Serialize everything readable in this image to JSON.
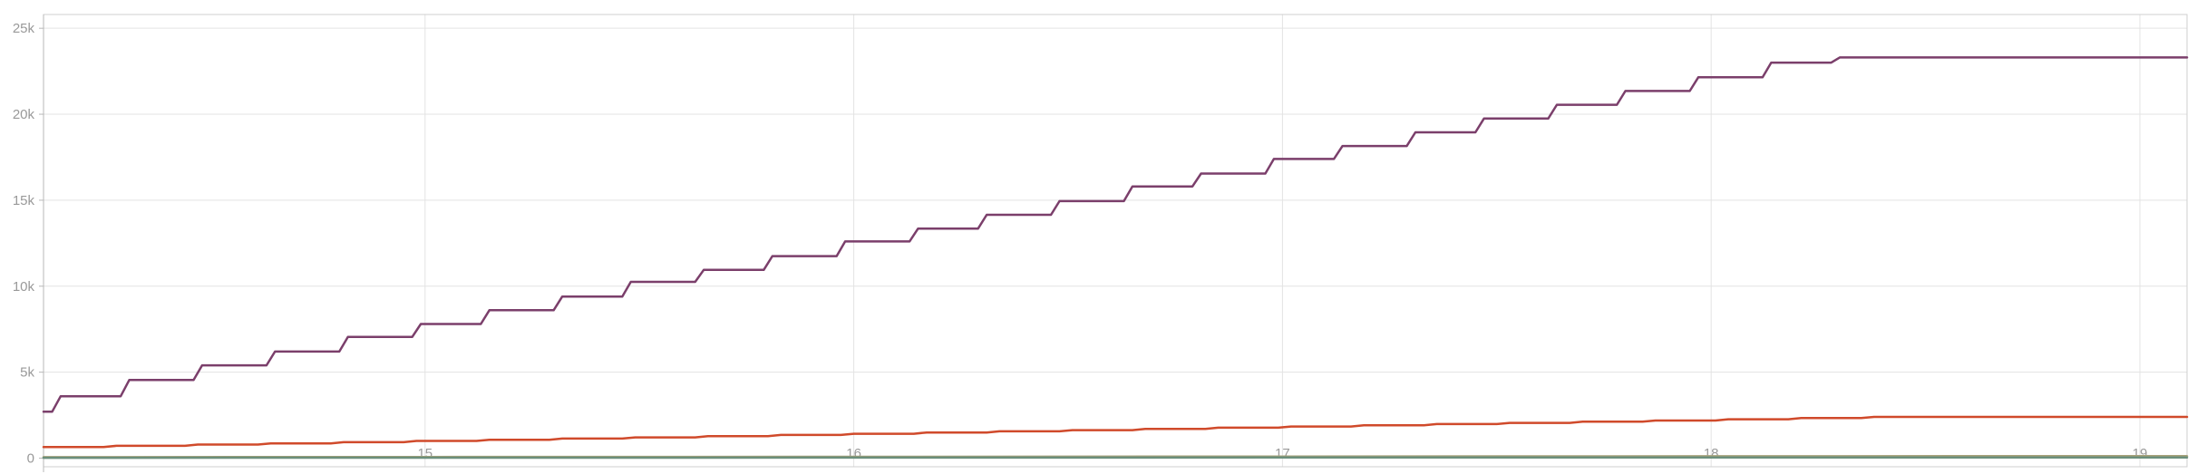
{
  "chart_data": {
    "type": "line",
    "title": "",
    "xlabel": "",
    "ylabel": "",
    "xlim": [
      14.11,
      19.11
    ],
    "ylim": [
      -500,
      25800
    ],
    "x_ticks": [
      {
        "value": 15,
        "label": "15"
      },
      {
        "value": 16,
        "label": "16"
      },
      {
        "value": 17,
        "label": "17"
      },
      {
        "value": 18,
        "label": "18"
      },
      {
        "value": 19,
        "label": "19"
      }
    ],
    "y_ticks": [
      {
        "value": 0,
        "label": "0"
      },
      {
        "value": 5000,
        "label": "5k"
      },
      {
        "value": 10000,
        "label": "10k"
      },
      {
        "value": 15000,
        "label": "15k"
      },
      {
        "value": 20000,
        "label": "20k"
      },
      {
        "value": 25000,
        "label": "25k"
      }
    ],
    "grid": true,
    "legend": "none",
    "series": [
      {
        "color": "#7b3f6b",
        "x": [
          14.11,
          14.13,
          14.15,
          14.29,
          14.31,
          14.46,
          14.48,
          14.63,
          14.65,
          14.8,
          14.82,
          14.97,
          14.99,
          15.13,
          15.15,
          15.3,
          15.32,
          15.46,
          15.48,
          15.63,
          15.65,
          15.79,
          15.81,
          15.96,
          15.98,
          16.13,
          16.15,
          16.29,
          16.31,
          16.46,
          16.48,
          16.63,
          16.65,
          16.79,
          16.81,
          16.96,
          16.98,
          17.12,
          17.14,
          17.29,
          17.31,
          17.45,
          17.47,
          17.62,
          17.64,
          17.78,
          17.8,
          17.95,
          17.97,
          18.12,
          18.14,
          18.28,
          18.3,
          19.11
        ],
        "y": [
          2700,
          2700,
          3600,
          3600,
          4550,
          4550,
          5400,
          5400,
          6200,
          6200,
          7050,
          7050,
          7800,
          7800,
          8600,
          8600,
          9400,
          9400,
          10250,
          10250,
          10950,
          10950,
          11750,
          11750,
          12600,
          12600,
          13350,
          13350,
          14150,
          14150,
          14950,
          14950,
          15800,
          15800,
          16550,
          16550,
          17400,
          17400,
          18150,
          18150,
          18950,
          18950,
          19750,
          19750,
          20550,
          20550,
          21350,
          21350,
          22150,
          22150,
          23000,
          23000,
          23300,
          23300
        ]
      },
      {
        "color": "#d04a2b",
        "x": [
          14.11,
          14.25,
          14.28,
          14.44,
          14.47,
          14.61,
          14.64,
          14.78,
          14.81,
          14.95,
          14.98,
          15.12,
          15.15,
          15.29,
          15.32,
          15.46,
          15.49,
          15.63,
          15.66,
          15.8,
          15.83,
          15.97,
          16.0,
          16.14,
          16.17,
          16.31,
          16.34,
          16.48,
          16.51,
          16.65,
          16.68,
          16.82,
          16.85,
          16.99,
          17.02,
          17.16,
          17.19,
          17.33,
          17.36,
          17.5,
          17.53,
          17.67,
          17.7,
          17.84,
          17.87,
          18.01,
          18.04,
          18.18,
          18.21,
          18.35,
          18.38,
          19.11
        ],
        "y": [
          650,
          650,
          720,
          720,
          790,
          790,
          860,
          860,
          930,
          930,
          1000,
          1000,
          1070,
          1070,
          1140,
          1140,
          1210,
          1210,
          1280,
          1280,
          1350,
          1350,
          1420,
          1420,
          1490,
          1490,
          1560,
          1560,
          1630,
          1630,
          1700,
          1700,
          1770,
          1770,
          1840,
          1840,
          1910,
          1910,
          1980,
          1980,
          2050,
          2050,
          2120,
          2120,
          2190,
          2190,
          2260,
          2260,
          2330,
          2330,
          2400,
          2400
        ]
      },
      {
        "color": "#a8a27a",
        "x": [
          14.11,
          15.0,
          16.0,
          17.0,
          18.0,
          19.11
        ],
        "y": [
          60,
          70,
          80,
          95,
          110,
          120
        ]
      },
      {
        "color": "#6b8f7b",
        "x": [
          14.11,
          15.0,
          16.0,
          17.0,
          18.0,
          19.11
        ],
        "y": [
          20,
          25,
          30,
          35,
          40,
          45
        ]
      }
    ]
  }
}
